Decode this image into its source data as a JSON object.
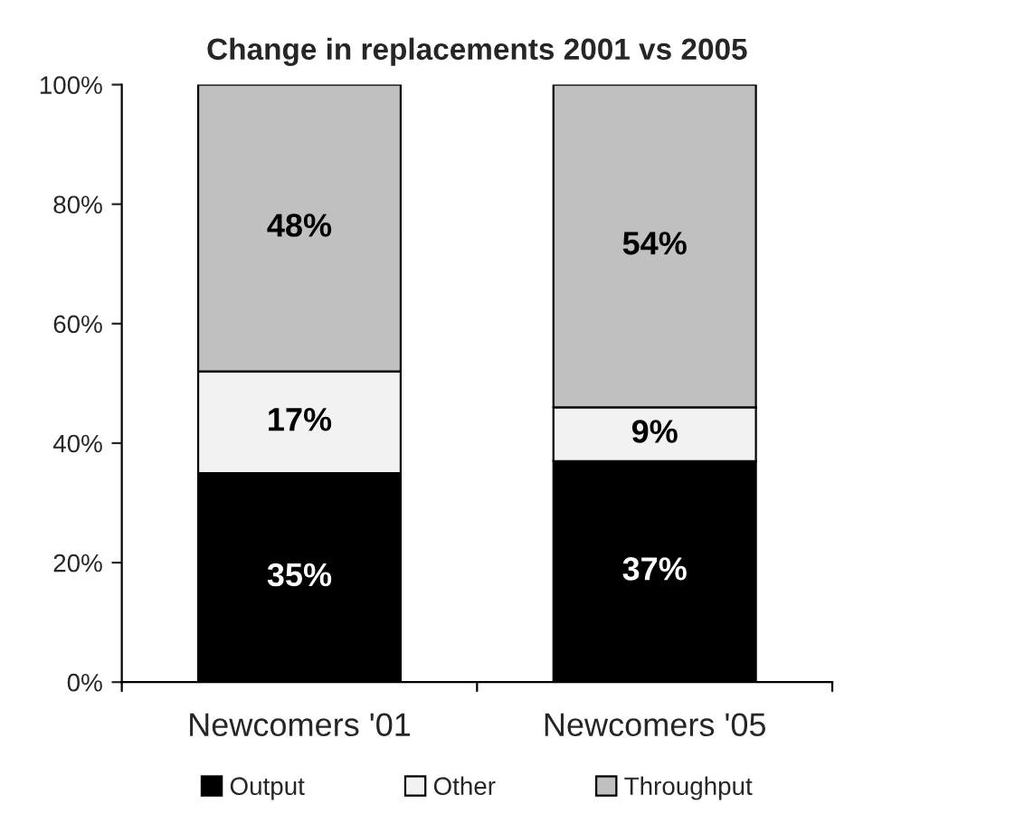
{
  "chart_data": {
    "type": "bar",
    "title": "Change in replacements 2001 vs 2005",
    "stacked": true,
    "categories": [
      "Newcomers '01",
      "Newcomers '05"
    ],
    "series": [
      {
        "name": "Output",
        "color": "#000000",
        "values": [
          35,
          37
        ],
        "value_labels": [
          "35%",
          "37%"
        ]
      },
      {
        "name": "Other",
        "color": "#f2f2f2",
        "values": [
          17,
          9
        ],
        "value_labels": [
          "17%",
          "9%"
        ]
      },
      {
        "name": "Throughput",
        "color": "#c0c0c0",
        "values": [
          48,
          54
        ],
        "value_labels": [
          "48%",
          "54%"
        ]
      }
    ],
    "ylim": [
      0,
      100
    ],
    "yticks": [
      {
        "value": 0,
        "label": "0%"
      },
      {
        "value": 20,
        "label": "20%"
      },
      {
        "value": 40,
        "label": "40%"
      },
      {
        "value": 60,
        "label": "60%"
      },
      {
        "value": 80,
        "label": "80%"
      },
      {
        "value": 100,
        "label": "100%"
      }
    ],
    "grid": false,
    "legend": "bottom"
  }
}
